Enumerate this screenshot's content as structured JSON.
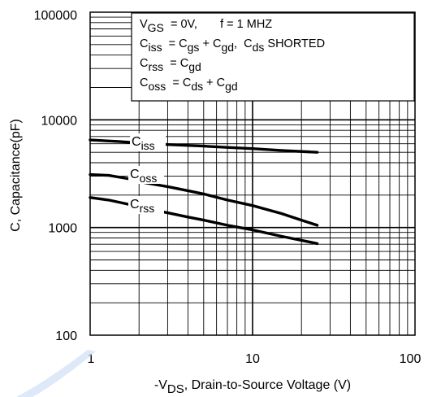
{
  "chart_data": {
    "type": "line",
    "x_scale": "log",
    "y_scale": "log",
    "xlim": [
      1,
      100
    ],
    "ylim": [
      100,
      100000
    ],
    "grid": true,
    "legend_position": "top-right",
    "xticks": [
      "1",
      "10",
      "100"
    ],
    "yticks": [
      "100",
      "1000",
      "10000",
      "100000"
    ],
    "xlabel": {
      "prefix": "-V",
      "sub": "DS",
      "rest": ", Drain-to-Source Voltage (V)"
    },
    "ylabel": "C, Capacitance(pF)",
    "legend_lines": [
      [
        {
          "t": "V",
          "sub": false
        },
        {
          "t": "GS",
          "sub": true
        },
        {
          "t": "  = 0V,       f = 1 MHZ",
          "sub": false
        }
      ],
      [
        {
          "t": "C",
          "sub": false
        },
        {
          "t": "iss",
          "sub": true
        },
        {
          "t": "  = C",
          "sub": false
        },
        {
          "t": "gs",
          "sub": true
        },
        {
          "t": " + C",
          "sub": false
        },
        {
          "t": "gd",
          "sub": true
        },
        {
          "t": ",  C",
          "sub": false
        },
        {
          "t": "ds",
          "sub": true
        },
        {
          "t": " SHORTED",
          "sub": false
        }
      ],
      [
        {
          "t": "C",
          "sub": false
        },
        {
          "t": "rss",
          "sub": true
        },
        {
          "t": "  = C",
          "sub": false
        },
        {
          "t": "gd",
          "sub": true
        }
      ],
      [
        {
          "t": "C",
          "sub": false
        },
        {
          "t": "oss",
          "sub": true
        },
        {
          "t": "  = C",
          "sub": false
        },
        {
          "t": "ds",
          "sub": true
        },
        {
          "t": " + C",
          "sub": false
        },
        {
          "t": "gd",
          "sub": true
        }
      ]
    ],
    "series": [
      {
        "name": "Ciss",
        "label_main": "C",
        "label_sub": "iss",
        "x": [
          1,
          1.5,
          2,
          3,
          5,
          7,
          10,
          15,
          25
        ],
        "y": [
          6500,
          6300,
          6100,
          5900,
          5700,
          5550,
          5400,
          5200,
          5000
        ]
      },
      {
        "name": "Coss",
        "label_main": "C",
        "label_sub": "oss",
        "x": [
          1,
          1.3,
          1.7,
          2.2,
          3,
          4,
          5,
          7,
          10,
          15,
          20,
          25
        ],
        "y": [
          3100,
          3050,
          2850,
          2600,
          2400,
          2200,
          2050,
          1800,
          1600,
          1350,
          1170,
          1050
        ]
      },
      {
        "name": "Crss",
        "label_main": "C",
        "label_sub": "rss",
        "x": [
          1,
          1.3,
          1.7,
          2.2,
          3,
          4,
          5,
          7,
          10,
          15,
          20,
          25
        ],
        "y": [
          1900,
          1800,
          1650,
          1500,
          1370,
          1250,
          1170,
          1050,
          950,
          830,
          760,
          710
        ]
      }
    ]
  }
}
